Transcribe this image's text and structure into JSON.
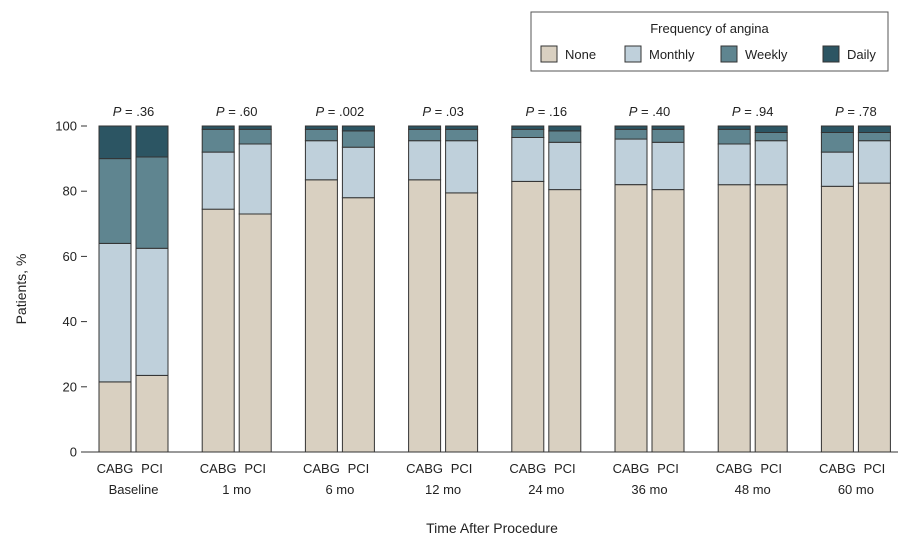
{
  "chart_data": {
    "type": "bar",
    "stacked": true,
    "ylabel": "Patients, %",
    "xlabel": "Time After Procedure",
    "ylim": [
      0,
      100
    ],
    "yticks": [
      0,
      20,
      40,
      60,
      80,
      100
    ],
    "legend": {
      "title": "Frequency of angina",
      "placement": "top-right",
      "entries": [
        "None",
        "Monthly",
        "Weekly",
        "Daily"
      ]
    },
    "colors": {
      "None": "#d9d0c1",
      "Monthly": "#bfd0db",
      "Weekly": "#5f8590",
      "Daily": "#2c5563"
    },
    "groups": [
      {
        "label": "Baseline",
        "p_prefix": "P",
        "p_text": " = .36",
        "bars": [
          {
            "label": "CABG",
            "values": {
              "None": 21.5,
              "Monthly": 42.5,
              "Weekly": 26.0,
              "Daily": 10.0
            }
          },
          {
            "label": "PCI",
            "values": {
              "None": 23.5,
              "Monthly": 39.0,
              "Weekly": 28.0,
              "Daily": 9.5
            }
          }
        ]
      },
      {
        "label": "1 mo",
        "p_prefix": "P",
        "p_text": " = .60",
        "bars": [
          {
            "label": "CABG",
            "values": {
              "None": 74.5,
              "Monthly": 17.5,
              "Weekly": 7.0,
              "Daily": 1.0
            }
          },
          {
            "label": "PCI",
            "values": {
              "None": 73.0,
              "Monthly": 21.5,
              "Weekly": 4.5,
              "Daily": 1.0
            }
          }
        ]
      },
      {
        "label": "6 mo",
        "p_prefix": "P",
        "p_text": " = .002",
        "bars": [
          {
            "label": "CABG",
            "values": {
              "None": 83.5,
              "Monthly": 12.0,
              "Weekly": 3.5,
              "Daily": 1.0
            }
          },
          {
            "label": "PCI",
            "values": {
              "None": 78.0,
              "Monthly": 15.5,
              "Weekly": 5.0,
              "Daily": 1.5
            }
          }
        ]
      },
      {
        "label": "12 mo",
        "p_prefix": "P",
        "p_text": " = .03",
        "bars": [
          {
            "label": "CABG",
            "values": {
              "None": 83.5,
              "Monthly": 12.0,
              "Weekly": 3.5,
              "Daily": 1.0
            }
          },
          {
            "label": "PCI",
            "values": {
              "None": 79.5,
              "Monthly": 16.0,
              "Weekly": 3.5,
              "Daily": 1.0
            }
          }
        ]
      },
      {
        "label": "24 mo",
        "p_prefix": "P",
        "p_text": " = .16",
        "bars": [
          {
            "label": "CABG",
            "values": {
              "None": 83.0,
              "Monthly": 13.5,
              "Weekly": 2.5,
              "Daily": 1.0
            }
          },
          {
            "label": "PCI",
            "values": {
              "None": 80.5,
              "Monthly": 14.5,
              "Weekly": 3.5,
              "Daily": 1.5
            }
          }
        ]
      },
      {
        "label": "36 mo",
        "p_prefix": "P",
        "p_text": " = .40",
        "bars": [
          {
            "label": "CABG",
            "values": {
              "None": 82.0,
              "Monthly": 14.0,
              "Weekly": 3.0,
              "Daily": 1.0
            }
          },
          {
            "label": "PCI",
            "values": {
              "None": 80.5,
              "Monthly": 14.5,
              "Weekly": 4.0,
              "Daily": 1.0
            }
          }
        ]
      },
      {
        "label": "48 mo",
        "p_prefix": "P",
        "p_text": " = .94",
        "bars": [
          {
            "label": "CABG",
            "values": {
              "None": 82.0,
              "Monthly": 12.5,
              "Weekly": 4.5,
              "Daily": 1.0
            }
          },
          {
            "label": "PCI",
            "values": {
              "None": 82.0,
              "Monthly": 13.5,
              "Weekly": 2.5,
              "Daily": 2.0
            }
          }
        ]
      },
      {
        "label": "60 mo",
        "p_prefix": "P",
        "p_text": " = .78",
        "bars": [
          {
            "label": "CABG",
            "values": {
              "None": 81.5,
              "Monthly": 10.5,
              "Weekly": 6.0,
              "Daily": 2.0
            }
          },
          {
            "label": "PCI",
            "values": {
              "None": 82.5,
              "Monthly": 13.0,
              "Weekly": 2.5,
              "Daily": 2.0
            }
          }
        ]
      }
    ]
  }
}
